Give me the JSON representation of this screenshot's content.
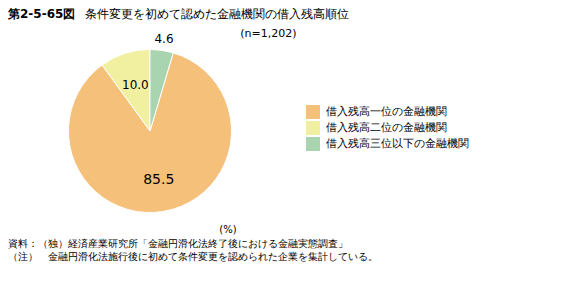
{
  "chart_data": {
    "type": "pie",
    "title": "条件変更を初めて認めた金融機関の借入残高順位",
    "categories": [
      "借入残高一位の金融機関",
      "借入残高二位の金融機関",
      "借入残高三位以下の金融機関"
    ],
    "values": [
      85.5,
      10.0,
      4.6
    ],
    "value_labels": [
      "85.5",
      "10.0",
      "4.6"
    ],
    "colors": [
      "#F5C07A",
      "#F0F0A0",
      "#A8D4B0"
    ],
    "data_labels": true,
    "legend": "right",
    "annotations": [
      "第2-5-65図",
      "(n=1,202)",
      "(%)"
    ],
    "notes": [
      "資料：（独）経済産業研究所「金融円滑化法終了後における金融実態調査」",
      "（注）　金融円滑化法施行後に初めて条件変更を認められた企業を集計している。"
    ]
  }
}
